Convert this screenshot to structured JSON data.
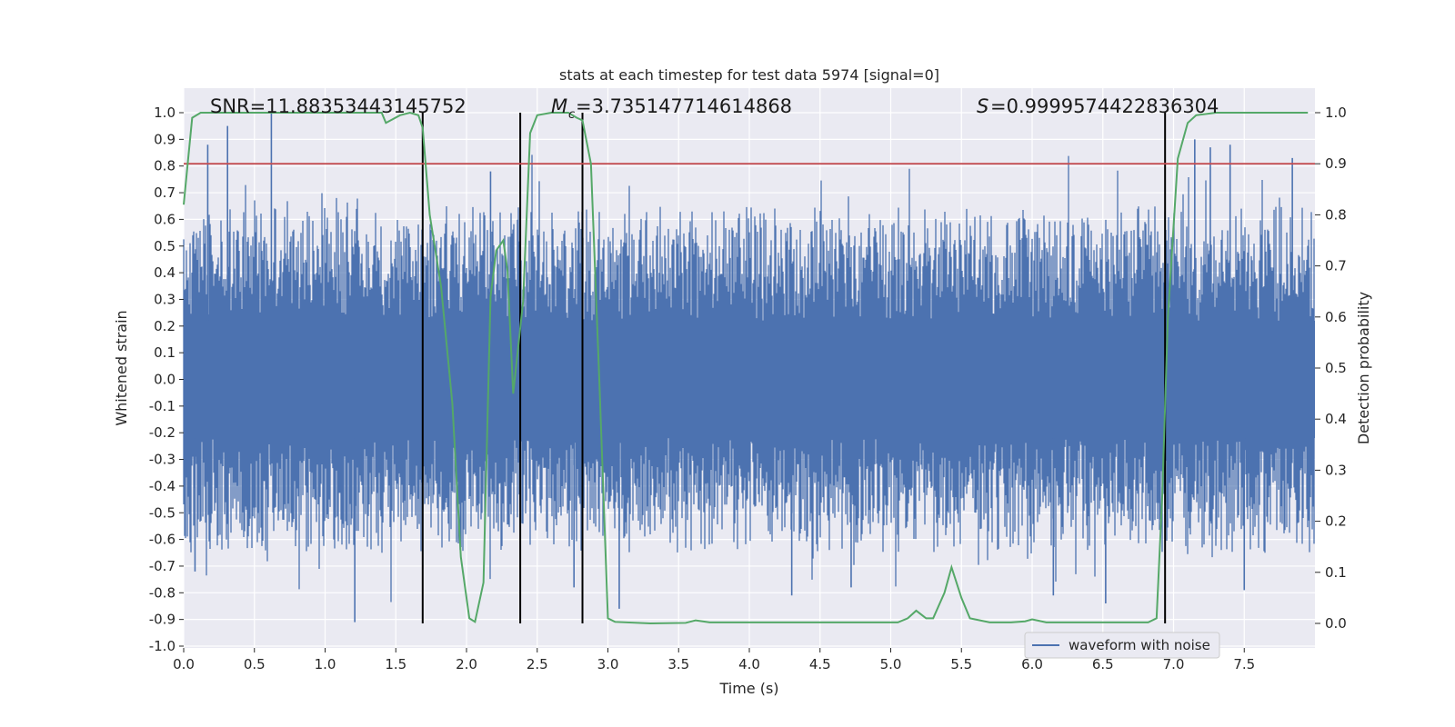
{
  "chart_data": {
    "type": "line",
    "title": "stats at each timestep for test data 5974 [signal=0]",
    "xlabel": "Time (s)",
    "ylabel": "Whitened strain",
    "y2label": "Detection probability",
    "xlim": [
      0,
      8
    ],
    "ylim": [
      -1.0,
      1.0
    ],
    "y2lim": [
      -0.045,
      1.045
    ],
    "x_ticks": [
      "0.0",
      "0.5",
      "1.0",
      "1.5",
      "2.0",
      "2.5",
      "3.0",
      "3.5",
      "4.0",
      "4.5",
      "5.0",
      "5.5",
      "6.0",
      "6.5",
      "7.0",
      "7.5"
    ],
    "y_ticks": [
      "-1.0",
      "-0.9",
      "-0.8",
      "-0.7",
      "-0.6",
      "-0.5",
      "-0.4",
      "-0.3",
      "-0.2",
      "-0.1",
      "0.0",
      "0.1",
      "0.2",
      "0.3",
      "0.4",
      "0.5",
      "0.6",
      "0.7",
      "0.8",
      "0.9",
      "1.0"
    ],
    "y2_ticks": [
      "0.0",
      "0.1",
      "0.2",
      "0.3",
      "0.4",
      "0.5",
      "0.6",
      "0.7",
      "0.8",
      "0.9",
      "1.0"
    ],
    "annotations": {
      "snr": "SNR=11.88353443145752",
      "mc": "=3.735147714614868",
      "s": "=0.9999574422836304"
    },
    "threshold_line": {
      "axis": "y2",
      "value": 0.9,
      "color": "#c44e52"
    },
    "vertical_lines_x": [
      1.69,
      2.38,
      2.82,
      6.94
    ],
    "vertical_lines_y2_range": [
      0.0,
      1.0
    ],
    "waveform": {
      "name": "waveform with noise",
      "color": "#4c72b0",
      "amplitude_envelope": 0.45,
      "peak_spikes": [
        {
          "x": 0.17,
          "y": 0.88
        },
        {
          "x": 0.31,
          "y": 0.95
        },
        {
          "x": 0.62,
          "y": 1.0
        },
        {
          "x": 1.21,
          "y": -0.91
        },
        {
          "x": 1.69,
          "y": -0.71
        },
        {
          "x": 0.08,
          "y": -0.72
        },
        {
          "x": 3.08,
          "y": -0.86
        },
        {
          "x": 4.3,
          "y": -0.81
        },
        {
          "x": 4.72,
          "y": -0.78
        },
        {
          "x": 6.52,
          "y": -0.84
        },
        {
          "x": 7.15,
          "y": 0.9
        },
        {
          "x": 7.4,
          "y": 0.88
        },
        {
          "x": 7.5,
          "y": -0.79
        },
        {
          "x": 7.84,
          "y": 0.83
        },
        {
          "x": 6.15,
          "y": -0.81
        },
        {
          "x": 2.17,
          "y": 0.78
        },
        {
          "x": 2.76,
          "y": -0.78
        },
        {
          "x": 7.26,
          "y": 0.87
        }
      ]
    },
    "probability": {
      "name": "detection probability",
      "color": "#55a868",
      "x": [
        0.0,
        0.06,
        0.12,
        0.3,
        0.6,
        0.9,
        1.2,
        1.4,
        1.43,
        1.53,
        1.6,
        1.66,
        1.69,
        1.74,
        1.82,
        1.9,
        1.96,
        2.02,
        2.06,
        2.12,
        2.17,
        2.21,
        2.26,
        2.29,
        2.33,
        2.4,
        2.45,
        2.5,
        2.6,
        2.72,
        2.78,
        2.82,
        2.88,
        2.94,
        3.0,
        3.05,
        3.3,
        3.55,
        3.62,
        3.72,
        4.0,
        4.4,
        4.8,
        5.05,
        5.12,
        5.18,
        5.25,
        5.3,
        5.38,
        5.43,
        5.5,
        5.56,
        5.7,
        5.85,
        5.95,
        6.0,
        6.1,
        6.3,
        6.6,
        6.82,
        6.88,
        6.92,
        6.96,
        7.03,
        7.1,
        7.16,
        7.3,
        7.6,
        7.95
      ],
      "y": [
        0.82,
        0.99,
        1.0,
        1.0,
        1.0,
        1.0,
        1.0,
        1.0,
        0.98,
        0.995,
        1.0,
        0.995,
        0.97,
        0.8,
        0.66,
        0.43,
        0.13,
        0.01,
        0.003,
        0.08,
        0.64,
        0.73,
        0.75,
        0.69,
        0.45,
        0.63,
        0.96,
        0.995,
        1.0,
        1.0,
        0.99,
        0.985,
        0.9,
        0.47,
        0.01,
        0.003,
        0.0,
        0.001,
        0.006,
        0.002,
        0.002,
        0.002,
        0.002,
        0.002,
        0.01,
        0.025,
        0.01,
        0.01,
        0.06,
        0.11,
        0.05,
        0.01,
        0.002,
        0.002,
        0.004,
        0.008,
        0.002,
        0.002,
        0.002,
        0.002,
        0.01,
        0.25,
        0.6,
        0.91,
        0.98,
        0.995,
        1.0,
        1.0,
        1.0
      ]
    },
    "legend": {
      "label": "waveform with noise",
      "position": "lower-right"
    }
  }
}
